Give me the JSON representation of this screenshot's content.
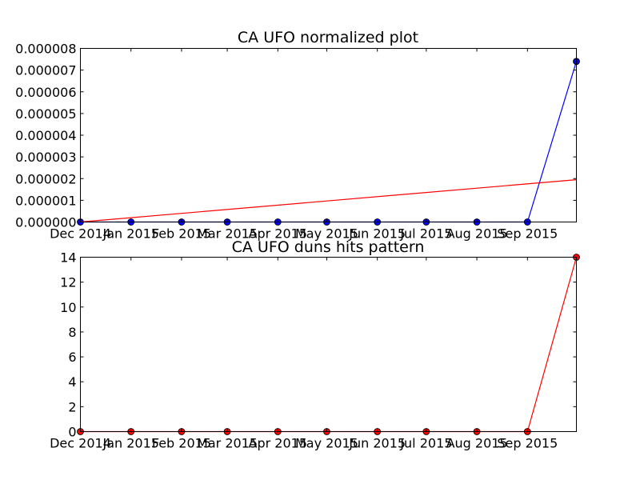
{
  "chart_data": [
    {
      "type": "line",
      "title": "CA UFO normalized plot",
      "xlabel": "",
      "ylabel": "",
      "x_tick_labels": [
        "Dec 2014",
        "Jan 2015",
        "Feb 2015",
        "Mar 2015",
        "Apr 2015",
        "May 2015",
        "Jun 2015",
        "Jul 2015",
        "Aug 2015",
        "Sep 2015"
      ],
      "y_tick_labels": [
        "0.000000",
        "0.000001",
        "0.000002",
        "0.000003",
        "0.000004",
        "0.000005",
        "0.000006",
        "0.000007",
        "0.000008"
      ],
      "ylim": [
        0,
        8e-06
      ],
      "grid": false,
      "series": [
        {
          "color": "#0000ff",
          "marker": "circle",
          "x": [
            "2014-12-01",
            "2015-01-01",
            "2015-02-01",
            "2015-03-01",
            "2015-04-01",
            "2015-05-01",
            "2015-06-01",
            "2015-07-01",
            "2015-08-01",
            "2015-09-01",
            "2015-10-01"
          ],
          "values": [
            0,
            0,
            0,
            0,
            0,
            0,
            0,
            0,
            0,
            0,
            7.4e-06
          ]
        },
        {
          "color": "#ff0000",
          "marker": "none",
          "x": [
            "2014-12-01",
            "2015-10-01"
          ],
          "values": [
            0,
            1.95e-06
          ]
        }
      ]
    },
    {
      "type": "line",
      "title": "CA UFO duns hits pattern",
      "xlabel": "",
      "ylabel": "",
      "x_tick_labels": [
        "Dec 2014",
        "Jan 2015",
        "Feb 2015",
        "Mar 2015",
        "Apr 2015",
        "May 2015",
        "Jun 2015",
        "Jul 2015",
        "Aug 2015",
        "Sep 2015"
      ],
      "y_tick_labels": [
        "0",
        "2",
        "4",
        "6",
        "8",
        "10",
        "12",
        "14"
      ],
      "ylim": [
        0,
        14
      ],
      "grid": false,
      "series": [
        {
          "color": "#ff0000",
          "marker": "circle",
          "x": [
            "2014-12-01",
            "2015-01-01",
            "2015-02-01",
            "2015-03-01",
            "2015-04-01",
            "2015-05-01",
            "2015-06-01",
            "2015-07-01",
            "2015-08-01",
            "2015-09-01",
            "2015-10-01"
          ],
          "values": [
            0,
            0,
            0,
            0,
            0,
            0,
            0,
            0,
            0,
            0,
            14
          ]
        }
      ]
    }
  ]
}
